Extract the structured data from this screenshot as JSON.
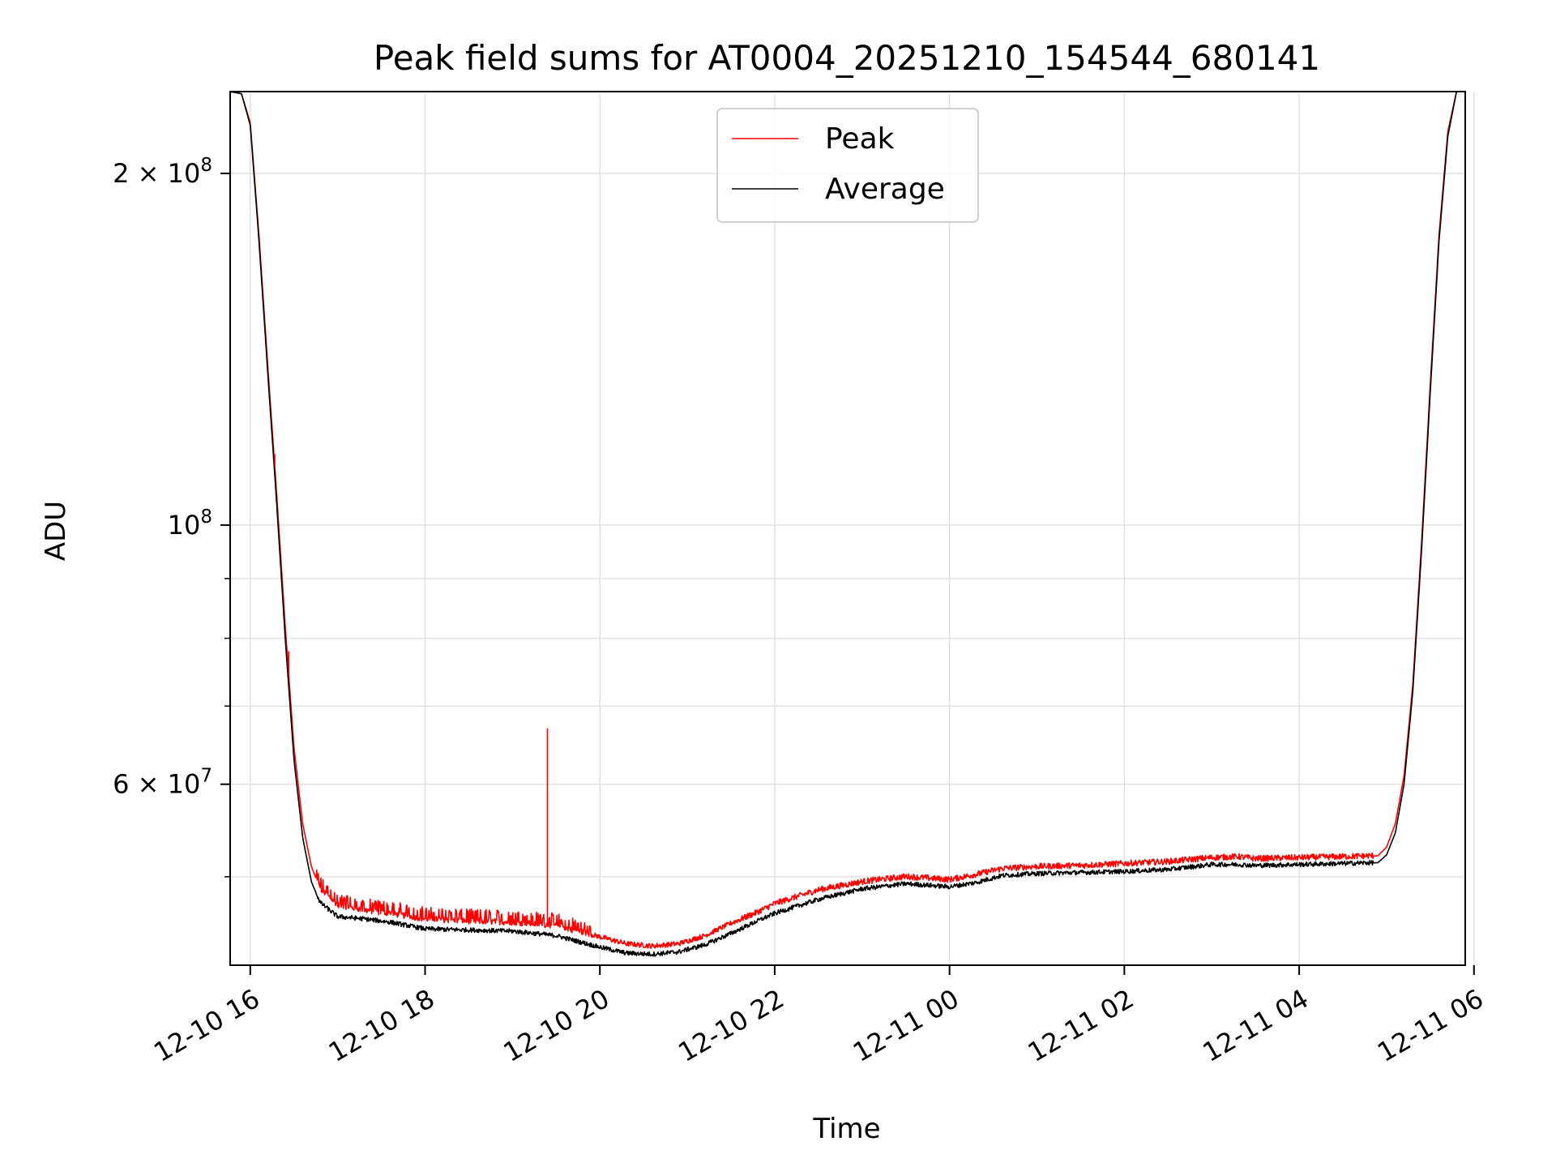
{
  "chart_data": {
    "type": "line",
    "title": "Peak field sums for AT0004_20251210_154544_680141",
    "xlabel": "Time",
    "ylabel": "ADU",
    "yscale": "log",
    "ylim": [
      42000000,
      235000000
    ],
    "xlim_hours": [
      15.77,
      29.9
    ],
    "grid": true,
    "x_ticks": [
      {
        "hour": 16,
        "label": "12-10 16"
      },
      {
        "hour": 18,
        "label": "12-10 18"
      },
      {
        "hour": 20,
        "label": "12-10 20"
      },
      {
        "hour": 22,
        "label": "12-10 22"
      },
      {
        "hour": 24,
        "label": "12-11 00"
      },
      {
        "hour": 26,
        "label": "12-11 02"
      },
      {
        "hour": 28,
        "label": "12-11 04"
      },
      {
        "hour": 30,
        "label": "12-11 06"
      }
    ],
    "y_major_ticks": [
      {
        "value": 200000000,
        "base": "2 × 10",
        "exp": "8"
      },
      {
        "value": 100000000,
        "base": "10",
        "exp": "8"
      },
      {
        "value": 60000000,
        "base": "6 × 10",
        "exp": "7"
      }
    ],
    "y_minor_ticks": [
      50000000,
      70000000,
      80000000,
      90000000
    ],
    "legend": {
      "location": "upper center",
      "entries": [
        "Peak",
        "Average"
      ]
    },
    "series": [
      {
        "name": "Average",
        "color": "#000000",
        "x_hours": [
          15.77,
          15.9,
          16.0,
          16.1,
          16.2,
          16.3,
          16.4,
          16.5,
          16.6,
          16.7,
          16.8,
          17.0,
          17.3,
          17.6,
          18.0,
          18.5,
          19.0,
          19.5,
          20.0,
          20.3,
          20.6,
          20.9,
          21.2,
          21.5,
          21.8,
          22.0,
          22.5,
          23.0,
          23.5,
          24.0,
          24.3,
          24.6,
          25.0,
          25.5,
          26.0,
          26.5,
          27.0,
          27.3,
          27.5,
          28.0,
          28.5,
          28.9,
          29.0,
          29.1,
          29.2,
          29.3,
          29.4,
          29.5,
          29.6,
          29.7,
          29.8,
          29.9
        ],
        "values": [
          235000000,
          234000000,
          220000000,
          175000000,
          135000000,
          105000000,
          80000000,
          63000000,
          54000000,
          49500000,
          47500000,
          46200000,
          46000000,
          45700000,
          45100000,
          45000000,
          44900000,
          44500000,
          43500000,
          43000000,
          42900000,
          43100000,
          43700000,
          44700000,
          45800000,
          46500000,
          47800000,
          48800000,
          49300000,
          49000000,
          49400000,
          50100000,
          50300000,
          50400000,
          50500000,
          50700000,
          51200000,
          51200000,
          51100000,
          51200000,
          51300000,
          51400000,
          52200000,
          54500000,
          60000000,
          72000000,
          95000000,
          130000000,
          175000000,
          215000000,
          235000000,
          235000000
        ]
      },
      {
        "name": "Peak",
        "color": "#ff0000",
        "x_hours": [
          15.77,
          15.9,
          16.0,
          16.1,
          16.2,
          16.3,
          16.4,
          16.5,
          16.6,
          16.7,
          16.8,
          17.0,
          17.3,
          17.6,
          18.0,
          18.5,
          19.0,
          19.5,
          20.0,
          20.3,
          20.6,
          20.9,
          21.2,
          21.5,
          21.8,
          22.0,
          22.5,
          23.0,
          23.5,
          24.0,
          24.3,
          24.6,
          25.0,
          25.5,
          26.0,
          26.5,
          27.0,
          27.3,
          27.5,
          28.0,
          28.5,
          28.9,
          29.0,
          29.1,
          29.2,
          29.3,
          29.4,
          29.5,
          29.6,
          29.7,
          29.8,
          29.9
        ],
        "values": [
          235000000,
          234000000,
          221000000,
          177000000,
          137000000,
          107000000,
          82000000,
          64500000,
          55500000,
          51000000,
          48800000,
          47300000,
          46800000,
          46500000,
          46000000,
          45800000,
          45700000,
          45400000,
          44400000,
          43800000,
          43600000,
          43800000,
          44500000,
          45600000,
          46600000,
          47400000,
          48700000,
          49500000,
          50000000,
          49700000,
          50200000,
          50800000,
          51000000,
          51100000,
          51300000,
          51500000,
          51900000,
          52000000,
          51800000,
          51900000,
          52000000,
          52100000,
          53000000,
          55500000,
          61000000,
          73000000,
          96500000,
          132000000,
          177000000,
          217000000,
          235000000,
          235000000
        ]
      }
    ],
    "annotations": [
      {
        "series": "Peak",
        "type": "spike",
        "hour": 19.4,
        "value": 67000000
      },
      {
        "series": "Peak",
        "type": "spike",
        "hour": 16.28,
        "value": 115000000
      },
      {
        "series": "Peak",
        "type": "spike",
        "hour": 16.44,
        "value": 78000000
      }
    ]
  }
}
